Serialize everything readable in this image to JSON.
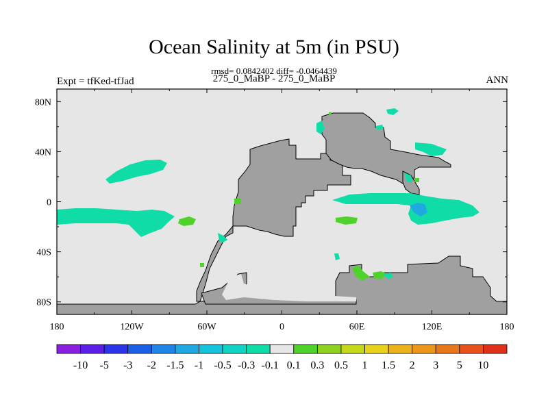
{
  "chart_data": {
    "type": "heatmap",
    "title": "Ocean Salinity at 5m (in PSU)",
    "subtitle": "rmsd= 0.0842402 diff= -0.0464439",
    "center_label": "275_0_MaBP - 275_0_MaBP",
    "left_label": "Expt = tfKed-tfJad",
    "right_label": "ANN",
    "x_range": [
      -180,
      180
    ],
    "y_range": [
      -90,
      90
    ],
    "x_ticks": [
      {
        "value": -180,
        "label": "180"
      },
      {
        "value": -120,
        "label": "120W"
      },
      {
        "value": -60,
        "label": "60W"
      },
      {
        "value": 0,
        "label": "0"
      },
      {
        "value": 60,
        "label": "60E"
      },
      {
        "value": 120,
        "label": "120E"
      },
      {
        "value": 180,
        "label": "180"
      }
    ],
    "y_ticks": [
      {
        "value": 80,
        "label": "80N"
      },
      {
        "value": 40,
        "label": "40N"
      },
      {
        "value": 0,
        "label": "0"
      },
      {
        "value": -40,
        "label": "40S"
      },
      {
        "value": -80,
        "label": "80S"
      }
    ],
    "colorbar": {
      "labels": [
        "-10",
        "-5",
        "-3",
        "-2",
        "-1.5",
        "-1",
        "-0.5",
        "-0.3",
        "-0.1",
        "0.1",
        "0.3",
        "0.5",
        "1",
        "1.5",
        "2",
        "3",
        "5",
        "10"
      ],
      "colors": [
        "#8a1fe0",
        "#5a1ee8",
        "#2a34e8",
        "#1a5fe6",
        "#1f86e6",
        "#1fa8e2",
        "#14c4dc",
        "#10d4c4",
        "#10dca8",
        "#e6e6e6",
        "#4fd22a",
        "#8cd21f",
        "#c4d81a",
        "#e8d21a",
        "#ecb21a",
        "#ec961a",
        "#e8761a",
        "#e8521a",
        "#e0301a"
      ]
    },
    "colors": {
      "ocean": "#e6e6e6",
      "land": "#a0a0a0",
      "negative": "#10dca8",
      "positive": "#4fd22a",
      "mid_negative": "#1fa8e2"
    }
  }
}
